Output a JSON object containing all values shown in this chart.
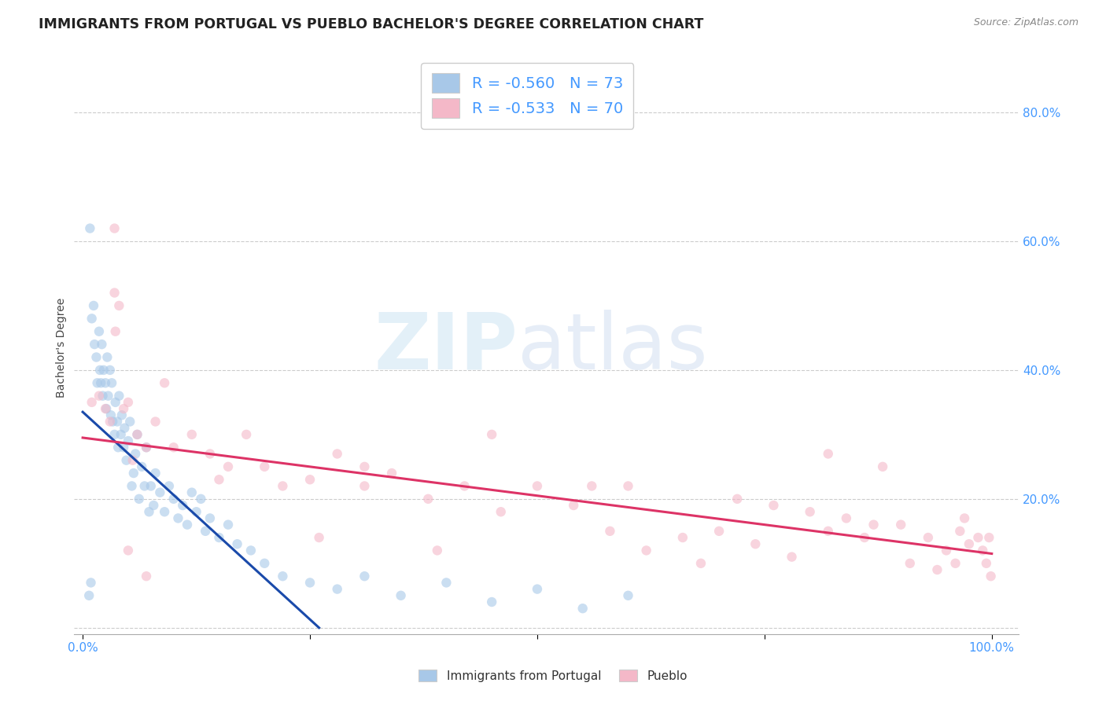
{
  "title": "IMMIGRANTS FROM PORTUGAL VS PUEBLO BACHELOR'S DEGREE CORRELATION CHART",
  "source": "Source: ZipAtlas.com",
  "ylabel": "Bachelor's Degree",
  "ytick_values": [
    0.0,
    0.2,
    0.4,
    0.6,
    0.8
  ],
  "ytick_labels": [
    "",
    "20.0%",
    "40.0%",
    "60.0%",
    "80.0%"
  ],
  "xtick_values": [
    0.0,
    0.25,
    0.5,
    0.75,
    1.0
  ],
  "xtick_labels": [
    "0.0%",
    "",
    "",
    "",
    "100.0%"
  ],
  "xlim": [
    -0.01,
    1.03
  ],
  "ylim": [
    -0.01,
    0.88
  ],
  "blue_color": "#a8c8e8",
  "pink_color": "#f4b8c8",
  "blue_line_color": "#1a4aaa",
  "pink_line_color": "#dd3366",
  "background_color": "#ffffff",
  "title_fontsize": 12.5,
  "source_fontsize": 9,
  "axis_label_fontsize": 10,
  "tick_fontsize": 11,
  "marker_size": 80,
  "marker_alpha": 0.6,
  "blue_scatter_x": [
    0.008,
    0.01,
    0.012,
    0.013,
    0.015,
    0.016,
    0.018,
    0.019,
    0.02,
    0.021,
    0.022,
    0.023,
    0.025,
    0.026,
    0.027,
    0.028,
    0.03,
    0.031,
    0.032,
    0.033,
    0.035,
    0.036,
    0.038,
    0.039,
    0.04,
    0.042,
    0.043,
    0.045,
    0.046,
    0.048,
    0.05,
    0.052,
    0.054,
    0.056,
    0.058,
    0.06,
    0.062,
    0.065,
    0.068,
    0.07,
    0.073,
    0.075,
    0.078,
    0.08,
    0.085,
    0.09,
    0.095,
    0.1,
    0.105,
    0.11,
    0.115,
    0.12,
    0.125,
    0.13,
    0.135,
    0.14,
    0.15,
    0.16,
    0.17,
    0.185,
    0.2,
    0.22,
    0.25,
    0.28,
    0.31,
    0.35,
    0.4,
    0.45,
    0.5,
    0.55,
    0.6,
    0.007,
    0.009
  ],
  "blue_scatter_y": [
    0.62,
    0.48,
    0.5,
    0.44,
    0.42,
    0.38,
    0.46,
    0.4,
    0.38,
    0.44,
    0.36,
    0.4,
    0.38,
    0.34,
    0.42,
    0.36,
    0.4,
    0.33,
    0.38,
    0.32,
    0.3,
    0.35,
    0.32,
    0.28,
    0.36,
    0.3,
    0.33,
    0.28,
    0.31,
    0.26,
    0.29,
    0.32,
    0.22,
    0.24,
    0.27,
    0.3,
    0.2,
    0.25,
    0.22,
    0.28,
    0.18,
    0.22,
    0.19,
    0.24,
    0.21,
    0.18,
    0.22,
    0.2,
    0.17,
    0.19,
    0.16,
    0.21,
    0.18,
    0.2,
    0.15,
    0.17,
    0.14,
    0.16,
    0.13,
    0.12,
    0.1,
    0.08,
    0.07,
    0.06,
    0.08,
    0.05,
    0.07,
    0.04,
    0.06,
    0.03,
    0.05,
    0.05,
    0.07
  ],
  "pink_scatter_x": [
    0.01,
    0.018,
    0.025,
    0.03,
    0.035,
    0.04,
    0.05,
    0.06,
    0.07,
    0.08,
    0.09,
    0.1,
    0.12,
    0.14,
    0.16,
    0.18,
    0.2,
    0.22,
    0.25,
    0.28,
    0.31,
    0.34,
    0.38,
    0.42,
    0.46,
    0.5,
    0.54,
    0.58,
    0.62,
    0.66,
    0.7,
    0.74,
    0.78,
    0.82,
    0.86,
    0.9,
    0.93,
    0.95,
    0.97,
    0.985,
    0.99,
    0.994,
    0.997,
    0.999,
    0.31,
    0.45,
    0.6,
    0.68,
    0.72,
    0.76,
    0.8,
    0.84,
    0.87,
    0.91,
    0.94,
    0.965,
    0.975,
    0.05,
    0.07,
    0.036,
    0.045,
    0.055,
    0.035,
    0.15,
    0.26,
    0.39,
    0.56,
    0.82,
    0.88,
    0.96
  ],
  "pink_scatter_y": [
    0.35,
    0.36,
    0.34,
    0.32,
    0.62,
    0.5,
    0.35,
    0.3,
    0.28,
    0.32,
    0.38,
    0.28,
    0.3,
    0.27,
    0.25,
    0.3,
    0.25,
    0.22,
    0.23,
    0.27,
    0.22,
    0.24,
    0.2,
    0.22,
    0.18,
    0.22,
    0.19,
    0.15,
    0.12,
    0.14,
    0.15,
    0.13,
    0.11,
    0.15,
    0.14,
    0.16,
    0.14,
    0.12,
    0.17,
    0.14,
    0.12,
    0.1,
    0.14,
    0.08,
    0.25,
    0.3,
    0.22,
    0.1,
    0.2,
    0.19,
    0.18,
    0.17,
    0.16,
    0.1,
    0.09,
    0.15,
    0.13,
    0.12,
    0.08,
    0.46,
    0.34,
    0.26,
    0.52,
    0.23,
    0.14,
    0.12,
    0.22,
    0.27,
    0.25,
    0.1
  ],
  "blue_line_x": [
    0.0,
    0.26
  ],
  "blue_line_y": [
    0.335,
    0.0
  ],
  "pink_line_x": [
    0.0,
    1.0
  ],
  "pink_line_y": [
    0.295,
    0.115
  ]
}
